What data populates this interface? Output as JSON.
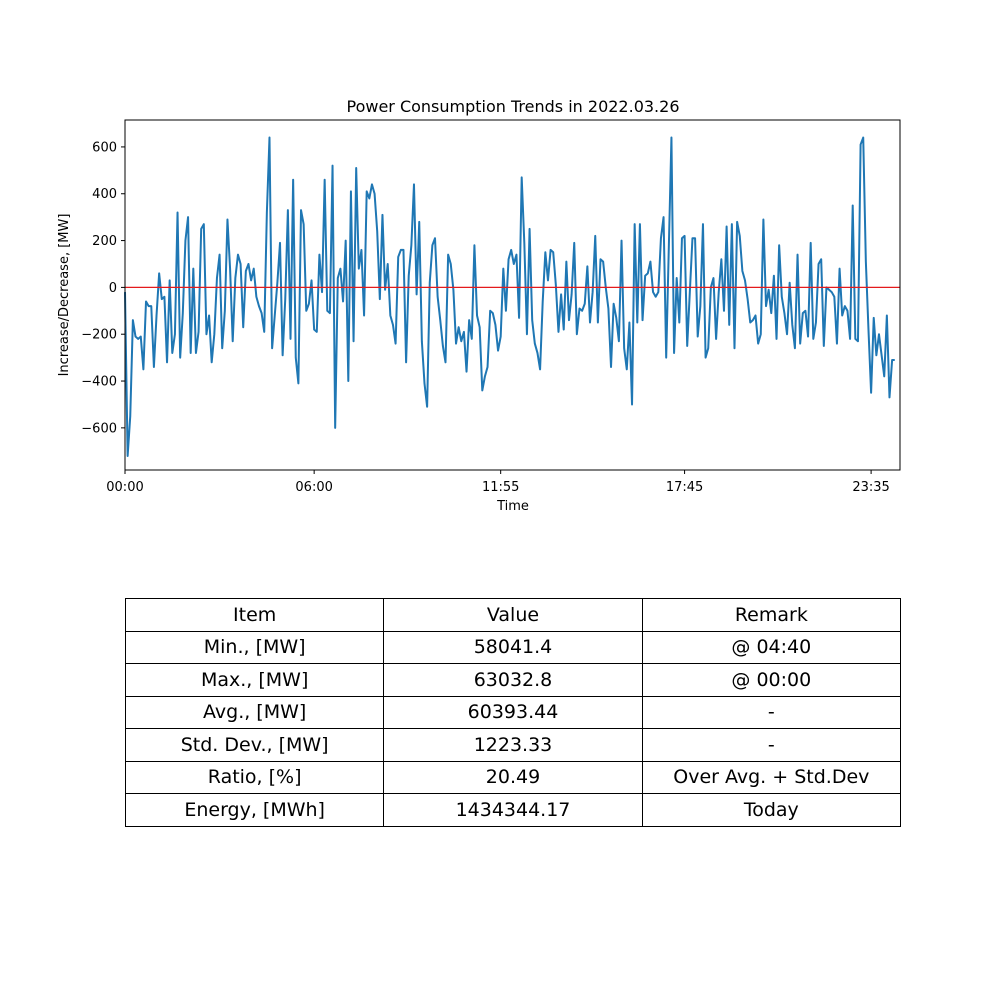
{
  "chart_data": {
    "type": "line",
    "title": "Power Consumption Trends in 2022.03.26",
    "xlabel": "Time",
    "ylabel": "Increase/Decrease, [MW]",
    "ylim": [
      -780,
      715
    ],
    "xlim": [
      0,
      295
    ],
    "x_ticks": [
      {
        "x": 0,
        "label": "00:00"
      },
      {
        "x": 72,
        "label": "06:00"
      },
      {
        "x": 143,
        "label": "11:55"
      },
      {
        "x": 213,
        "label": "17:45"
      },
      {
        "x": 284,
        "label": "23:35"
      }
    ],
    "y_ticks": [
      -600,
      -400,
      -200,
      0,
      200,
      400,
      600
    ],
    "grid": false,
    "zero_line": {
      "y": 0,
      "color": "#e41a1c"
    },
    "series": [
      {
        "color": "#1f77b4",
        "values": [
          -20,
          -720,
          -550,
          -140,
          -210,
          -220,
          -210,
          -350,
          -60,
          -80,
          -80,
          -340,
          -120,
          60,
          -50,
          -40,
          -320,
          30,
          -280,
          -200,
          320,
          -300,
          -110,
          200,
          300,
          -280,
          80,
          -280,
          -190,
          250,
          270,
          -200,
          -120,
          -320,
          -200,
          40,
          140,
          -260,
          -100,
          290,
          80,
          -230,
          40,
          140,
          100,
          -170,
          70,
          100,
          30,
          80,
          -40,
          -80,
          -110,
          -190,
          320,
          640,
          -260,
          -120,
          20,
          190,
          -290,
          -50,
          330,
          -220,
          460,
          -300,
          -410,
          330,
          270,
          -100,
          -70,
          30,
          -180,
          -190,
          140,
          -20,
          460,
          -100,
          -110,
          520,
          -600,
          40,
          80,
          -60,
          200,
          -400,
          410,
          -230,
          510,
          80,
          160,
          -120,
          410,
          380,
          440,
          400,
          240,
          -50,
          310,
          -10,
          100,
          -120,
          -160,
          -240,
          130,
          160,
          160,
          -320,
          50,
          180,
          440,
          -30,
          280,
          -230,
          -410,
          -510,
          20,
          180,
          210,
          -40,
          -140,
          -250,
          -320,
          140,
          100,
          -10,
          -240,
          -170,
          -230,
          -190,
          -360,
          -140,
          -220,
          180,
          -120,
          -170,
          -440,
          -380,
          -340,
          -100,
          -110,
          -160,
          -270,
          -210,
          80,
          -100,
          120,
          160,
          100,
          140,
          -130,
          470,
          190,
          -200,
          250,
          -140,
          -240,
          -280,
          -350,
          -60,
          150,
          30,
          160,
          150,
          10,
          -190,
          -30,
          -180,
          110,
          -140,
          -30,
          190,
          -200,
          -90,
          -100,
          -70,
          90,
          -150,
          -20,
          220,
          -150,
          120,
          110,
          0,
          -90,
          -340,
          -70,
          -130,
          -230,
          200,
          -260,
          -350,
          -150,
          -500,
          270,
          -150,
          270,
          -140,
          50,
          60,
          110,
          -20,
          -40,
          -20,
          210,
          300,
          -300,
          170,
          640,
          -280,
          40,
          -150,
          210,
          220,
          -250,
          -20,
          210,
          210,
          -210,
          -80,
          270,
          -300,
          -260,
          0,
          40,
          -220,
          -20,
          120,
          -100,
          260,
          -160,
          270,
          -260,
          280,
          220,
          70,
          30,
          -50,
          -150,
          -140,
          -120,
          -240,
          -200,
          290,
          -80,
          -10,
          -110,
          50,
          -220,
          180,
          -40,
          -110,
          -200,
          20,
          -160,
          -260,
          140,
          -240,
          -110,
          -100,
          -210,
          190,
          -220,
          -150,
          100,
          120,
          -250,
          0,
          -10,
          -20,
          -40,
          -240,
          80,
          -120,
          -80,
          -100,
          -220,
          350,
          -220,
          -230,
          610,
          640,
          110,
          -180,
          -450,
          -130,
          -290,
          -200,
          -290,
          -380,
          -120,
          -470,
          -310,
          -310
        ]
      }
    ]
  },
  "table": {
    "headers": [
      "Item",
      "Value",
      "Remark"
    ],
    "rows": [
      [
        "Min., [MW]",
        "58041.4",
        "@ 04:40"
      ],
      [
        "Max., [MW]",
        "63032.8",
        "@ 00:00"
      ],
      [
        "Avg., [MW]",
        "60393.44",
        "-"
      ],
      [
        "Std. Dev., [MW]",
        "1223.33",
        "-"
      ],
      [
        "Ratio, [%]",
        "20.49",
        "Over Avg. + Std.Dev"
      ],
      [
        "Energy, [MWh]",
        "1434344.17",
        "Today"
      ]
    ]
  }
}
